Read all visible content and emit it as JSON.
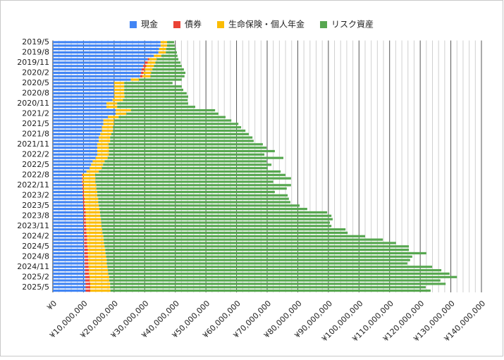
{
  "chart_data": {
    "type": "stacked-barh",
    "categories": [
      "2019/5",
      null,
      null,
      "2019/8",
      null,
      null,
      "2019/11",
      null,
      null,
      "2020/2",
      null,
      null,
      "2020/5",
      null,
      null,
      "2020/8",
      null,
      null,
      "2020/11",
      null,
      null,
      "2021/2",
      null,
      null,
      "2021/5",
      null,
      null,
      "2021/8",
      null,
      null,
      "2021/11",
      null,
      null,
      "2022/2",
      null,
      null,
      "2022/5",
      null,
      null,
      "2022/8",
      null,
      null,
      "2022/11",
      null,
      null,
      "2023/2",
      null,
      null,
      "2023/5",
      null,
      null,
      "2023/8",
      null,
      null,
      "2023/11",
      null,
      null,
      "2024/2",
      null,
      null,
      "2024/5",
      null,
      null,
      "2024/8",
      null,
      null,
      "2024/11",
      null,
      null,
      "2025/2",
      null,
      null,
      "2025/5",
      null
    ],
    "series": [
      {
        "name": "現金",
        "color": "#4285f4",
        "values": [
          35200000.0,
          35200000.0,
          34700000.0,
          34500000.0,
          33000000.0,
          31000000.0,
          30000000.0,
          29500000.0,
          29000000.0,
          28800000.0,
          28500000.0,
          25500000.0,
          20000000.0,
          20000000.0,
          20000000.0,
          20000000.0,
          20000000.0,
          19500000.0,
          17500000.0,
          17500000.0,
          20500000.0,
          20500000.0,
          18000000.0,
          16500000.0,
          16500000.0,
          16000000.0,
          16000000.0,
          15500000.0,
          15000000.0,
          15000000.0,
          14500000.0,
          14500000.0,
          14500000.0,
          14500000.0,
          14000000.0,
          13000000.0,
          12500000.0,
          12000000.0,
          11000000.0,
          9500000.0,
          9500000.0,
          9500000.0,
          9600000.0,
          9600000.0,
          9700000.0,
          9700000.0,
          9800000.0,
          9800000.0,
          9900000.0,
          9900000.0,
          10000000.0,
          10000000.0,
          10000000.0,
          10000000.0,
          10100000.0,
          10100000.0,
          10100000.0,
          10200000.0,
          10200000.0,
          10200000.0,
          10300000.0,
          10300000.0,
          10300000.0,
          10400000.0,
          10400000.0,
          10400000.0,
          10500000.0,
          10500000.0,
          10500000.0,
          10600000.0,
          10600000.0,
          10700000.0,
          10700000.0,
          10700000.0
        ]
      },
      {
        "name": "債券",
        "color": "#ea4335",
        "values": [
          0,
          0,
          0,
          0,
          0,
          500000.0,
          1000000.0,
          1000000.0,
          1000000.0,
          800000.0,
          800000.0,
          0,
          0,
          0,
          0,
          0,
          0,
          0,
          0,
          0,
          0,
          0,
          0,
          0,
          0,
          0,
          0,
          0,
          0,
          0,
          0,
          0,
          0,
          0,
          0,
          0,
          0,
          0,
          0,
          300000.0,
          300000.0,
          300000.0,
          400000.0,
          400000.0,
          500000.0,
          500000.0,
          600000.0,
          600000.0,
          600000.0,
          700000.0,
          700000.0,
          700000.0,
          800000.0,
          800000.0,
          800000.0,
          900000.0,
          900000.0,
          1000000.0,
          1000000.0,
          1000000.0,
          1000000.0,
          1100000.0,
          1100000.0,
          1100000.0,
          1200000.0,
          1200000.0,
          1200000.0,
          1300000.0,
          1300000.0,
          1400000.0,
          1400000.0,
          1500000.0,
          1500000.0,
          1500000.0
        ]
      },
      {
        "name": "生命保険・個人年金",
        "color": "#fbbc04",
        "values": [
          2100000.0,
          2100000.0,
          2300000.0,
          2400000.0,
          2400000.0,
          2400000.0,
          2500000.0,
          2500000.0,
          2500000.0,
          2500000.0,
          2600000.0,
          2600000.0,
          3300000.0,
          3300000.0,
          3300000.0,
          3300000.0,
          3400000.0,
          3400000.0,
          3500000.0,
          3500000.0,
          5000000.0,
          3500000.0,
          3500000.0,
          3500000.0,
          3500000.0,
          3600000.0,
          3600000.0,
          3600000.0,
          3700000.0,
          3700000.0,
          3700000.0,
          3800000.0,
          3800000.0,
          3800000.0,
          3900000.0,
          3900000.0,
          3900000.0,
          4000000.0,
          4000000.0,
          4000000.0,
          4100000.0,
          4100000.0,
          4200000.0,
          4200000.0,
          4300000.0,
          4300000.0,
          4400000.0,
          4400000.0,
          4500000.0,
          4600000.0,
          4700000.0,
          4800000.0,
          4900000.0,
          5000000.0,
          5000000.0,
          5100000.0,
          5200000.0,
          5300000.0,
          5400000.0,
          5500000.0,
          5600000.0,
          5700000.0,
          5800000.0,
          5900000.0,
          6000000.0,
          6000000.0,
          6100000.0,
          6200000.0,
          6300000.0,
          6400000.0,
          6400000.0,
          6500000.0,
          6500000.0,
          6600000.0
        ]
      },
      {
        "name": "リスク資産",
        "color": "#57a750",
        "values": [
          2300000.0,
          2500000.0,
          3200000.0,
          3600000.0,
          5300000.0,
          7100000.0,
          8200000.0,
          9100000.0,
          10300000.0,
          11200000.0,
          11100000.0,
          14000000.0,
          15800000.0,
          18800000.0,
          19300000.0,
          20400000.0,
          20800000.0,
          21100000.0,
          23200000.0,
          25500000.0,
          27500000.0,
          30100000.0,
          34900000.0,
          38300000.0,
          40600000.0,
          41900000.0,
          43300000.0,
          44900000.0,
          46500000.0,
          46900000.0,
          50400000.0,
          51500000.0,
          54200000.0,
          50800000.0,
          57400000.0,
          52900000.0,
          55000000.0,
          54200000.0,
          59400000.0,
          62200000.0,
          63900000.0,
          58100000.0,
          63600000.0,
          62200000.0,
          58000000.0,
          62200000.0,
          62300000.0,
          62800000.0,
          65600000.0,
          67900000.0,
          74200000.0,
          75500000.0,
          75700000.0,
          74700000.0,
          75100000.0,
          79500000.0,
          80100000.0,
          85500000.0,
          91200000.0,
          95400000.0,
          99400000.0,
          99200000.0,
          104800000.0,
          100000000.0,
          99100000.0,
          98200000.0,
          106100000.0,
          108900000.0,
          111500000.0,
          113600000.0,
          108200000.0,
          109600000.0,
          103100000.0,
          104600000.0
        ]
      }
    ],
    "xlim": [
      0,
      140000000
    ],
    "xticks": [
      {
        "value": 0,
        "label": "¥0"
      },
      {
        "value": 10000000,
        "label": "¥10,000,000"
      },
      {
        "value": 20000000,
        "label": "¥20,000,000"
      },
      {
        "value": 30000000,
        "label": "¥30,000,000"
      },
      {
        "value": 40000000,
        "label": "¥40,000,000"
      },
      {
        "value": 50000000,
        "label": "¥50,000,000"
      },
      {
        "value": 60000000,
        "label": "¥60,000,000"
      },
      {
        "value": 70000000,
        "label": "¥70,000,000"
      },
      {
        "value": 80000000,
        "label": "¥80,000,000"
      },
      {
        "value": 90000000,
        "label": "¥90,000,000"
      },
      {
        "value": 100000000,
        "label": "¥100,000,000"
      },
      {
        "value": 110000000,
        "label": "¥110,000,000"
      },
      {
        "value": 120000000,
        "label": "¥120,000,000"
      },
      {
        "value": 130000000,
        "label": "¥130,000,000"
      },
      {
        "value": 140000000,
        "label": "¥140,000,000"
      }
    ],
    "grid": true,
    "minor_grid": true,
    "legend": "top"
  }
}
